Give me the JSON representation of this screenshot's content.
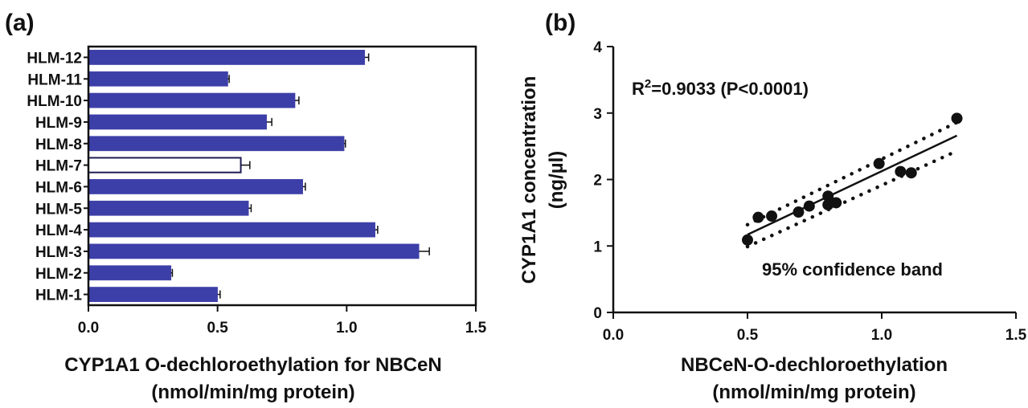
{
  "panels": [
    {
      "label": "(a)"
    },
    {
      "label": "(b)"
    }
  ],
  "chart_data": [
    {
      "type": "bar",
      "orientation": "horizontal",
      "categories": [
        "HLM-12",
        "HLM-11",
        "HLM-10",
        "HLM-9",
        "HLM-8",
        "HLM-7",
        "HLM-6",
        "HLM-5",
        "HLM-4",
        "HLM-3",
        "HLM-2",
        "HLM-1"
      ],
      "values": [
        1.07,
        0.54,
        0.8,
        0.69,
        0.99,
        0.59,
        0.83,
        0.62,
        1.11,
        1.28,
        0.32,
        0.5
      ],
      "errors": [
        0.015,
        0.005,
        0.015,
        0.02,
        0.005,
        0.035,
        0.01,
        0.01,
        0.01,
        0.04,
        0.005,
        0.01
      ],
      "xlabel": "CYP1A1 O-dechloroethylation for NBCeN",
      "xlabel_unit": "(nmol/min/mg protein)",
      "xlim": [
        0.0,
        1.5
      ],
      "xticks": [
        "0.0",
        "0.5",
        "1.0",
        "1.5"
      ],
      "bar_color": "#3d3fa8",
      "highlight_index": 5,
      "highlight_color": "#1e1e55"
    },
    {
      "type": "scatter",
      "points": [
        {
          "x": 0.5,
          "y": 1.09
        },
        {
          "x": 0.54,
          "y": 1.43
        },
        {
          "x": 0.59,
          "y": 1.45
        },
        {
          "x": 0.69,
          "y": 1.51
        },
        {
          "x": 0.73,
          "y": 1.6
        },
        {
          "x": 0.8,
          "y": 1.75
        },
        {
          "x": 0.8,
          "y": 1.62
        },
        {
          "x": 0.83,
          "y": 1.65
        },
        {
          "x": 0.99,
          "y": 2.24
        },
        {
          "x": 1.07,
          "y": 2.12
        },
        {
          "x": 1.11,
          "y": 2.1
        },
        {
          "x": 1.28,
          "y": 2.92
        }
      ],
      "fit_line": {
        "x": [
          0.5,
          1.28
        ],
        "y": [
          1.17,
          2.66
        ]
      },
      "band_upper": {
        "x": [
          0.5,
          1.28
        ],
        "y": [
          1.32,
          2.86
        ]
      },
      "band_lower": {
        "x": [
          0.5,
          1.28
        ],
        "y": [
          0.99,
          2.43
        ]
      },
      "xlabel": "NBCeN-O-dechloroethylation",
      "xlabel_unit": "(nmol/min/mg protein)",
      "ylabel": "CYP1A1 concentration",
      "ylabel_unit": "(ng/µl)",
      "xlim": [
        0.0,
        1.5
      ],
      "ylim": [
        0,
        4
      ],
      "xticks": [
        "0.0",
        "0.5",
        "1.0",
        "1.5"
      ],
      "yticks": [
        "0",
        "1",
        "2",
        "3",
        "4"
      ],
      "r2_prefix": "R",
      "r2_sup": "2",
      "r2_text": "=0.9033 (P<0.0001)",
      "band_label": "95% confidence band",
      "grid": false
    }
  ]
}
